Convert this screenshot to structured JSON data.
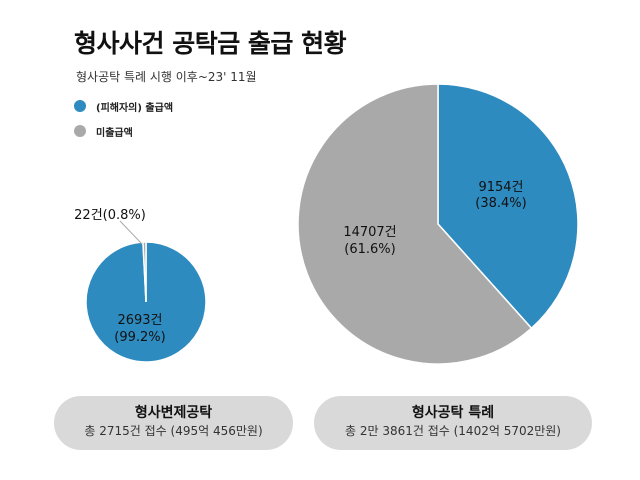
{
  "title": "형사사건 공탁금 출급 현황",
  "subtitle": "형사공탁 특례 시행 이후~23' 11월",
  "legend": [
    {
      "label": "(피해자의) 출급액",
      "color": "#2e8bbf"
    },
    {
      "label": "미출급액",
      "color": "#a9a9a9"
    }
  ],
  "chart_data": [
    {
      "type": "pie",
      "name": "형사변제공탁",
      "slices": [
        {
          "key": "paid",
          "count": 2693,
          "percent": 99.2,
          "label_line1": "2693건",
          "label_line2": "(99.2%)",
          "color": "#2e8bbf"
        },
        {
          "key": "unpaid",
          "count": 22,
          "percent": 0.8,
          "label_line1": "22건(0.8%)",
          "label_line2": "",
          "color": "#a9a9a9"
        }
      ]
    },
    {
      "type": "pie",
      "name": "형사공탁 특례",
      "slices": [
        {
          "key": "paid",
          "count": 9154,
          "percent": 38.4,
          "label_line1": "9154건",
          "label_line2": "(38.4%)",
          "color": "#2e8bbf"
        },
        {
          "key": "unpaid",
          "count": 14707,
          "percent": 61.6,
          "label_line1": "14707건",
          "label_line2": "(61.6%)",
          "color": "#a9a9a9"
        }
      ]
    }
  ],
  "captions": [
    {
      "title": "형사변제공탁",
      "sub": "총 2715건 접수 (495억 456만원)"
    },
    {
      "title": "형사공탁 특례",
      "sub": "총 2만 3861건 접수 (1402억 5702만원)"
    }
  ]
}
